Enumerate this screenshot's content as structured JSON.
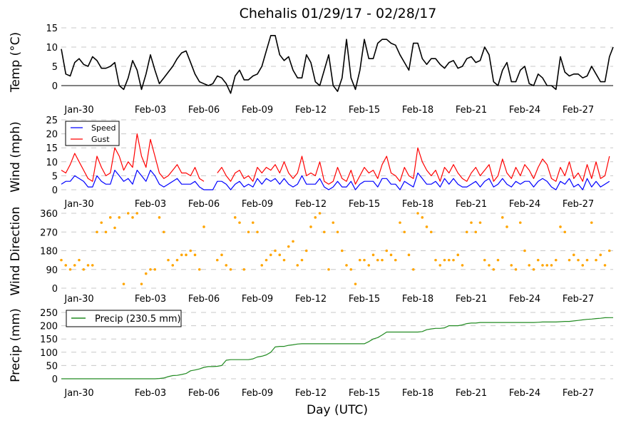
{
  "chart_data": [
    {
      "type": "line",
      "title": "Chehalis 01/29/17 - 02/28/17",
      "xlabel": "Day (UTC)",
      "ylabel": "Temp (°C)",
      "ylim": [
        -2.5,
        15
      ],
      "yticks": [
        "0",
        "5",
        "10",
        "15"
      ],
      "x_unit": "days since Jan-29 00:00, 6-hourly",
      "xtick_labels": [
        "Jan-30",
        "Feb-03",
        "Feb-06",
        "Feb-09",
        "Feb-12",
        "Feb-15",
        "Feb-18",
        "Feb-21",
        "Feb-24",
        "Feb-27"
      ],
      "xtick_days": [
        1,
        5,
        8,
        11,
        14,
        17,
        20,
        23,
        26,
        29
      ],
      "grid": true,
      "series": [
        {
          "name": "Temp",
          "color": "#000000",
          "values": [
            9.5,
            3,
            2.5,
            6,
            7,
            5.5,
            5,
            7.5,
            6.5,
            4.5,
            4.5,
            5,
            6,
            0,
            -1,
            2,
            6.5,
            4,
            -1,
            3,
            8,
            4,
            0.5,
            2,
            3.5,
            5,
            7,
            8.5,
            9,
            6,
            3,
            1,
            0.5,
            0,
            0.5,
            2.5,
            2,
            0.5,
            -2,
            2.5,
            4,
            1.5,
            1.5,
            2.5,
            3,
            5,
            9,
            13,
            13,
            8,
            6.5,
            7.5,
            4,
            2,
            2,
            8,
            6,
            1,
            0,
            4,
            8,
            0,
            -1.5,
            2,
            12,
            2,
            -1,
            4,
            12,
            7,
            7,
            11,
            12,
            12,
            11,
            10.5,
            8,
            6,
            4,
            11,
            11,
            7,
            5.5,
            7,
            7,
            5.5,
            4.5,
            6,
            6.5,
            4.5,
            5,
            7,
            7.5,
            6,
            6.5,
            10,
            8,
            1,
            0,
            4,
            6,
            1,
            1,
            4,
            5,
            0.5,
            0,
            3,
            2,
            0,
            0,
            -1,
            7.5,
            3.5,
            2.5,
            3,
            3,
            2,
            2.5,
            5,
            3,
            1,
            1,
            7.5,
            10
          ]
        }
      ]
    },
    {
      "type": "line",
      "ylabel": "Wind (mph)",
      "ylim": [
        0,
        25
      ],
      "yticks": [
        "0",
        "5",
        "10",
        "15",
        "20",
        "25"
      ],
      "legend": "top-left",
      "grid": true,
      "series": [
        {
          "name": "Speed",
          "color": "#0000ff",
          "values": [
            2,
            3,
            3,
            5,
            4,
            3,
            1,
            1,
            5,
            3,
            2,
            2,
            7,
            5,
            3,
            4,
            2,
            7,
            5,
            3,
            7,
            5,
            2,
            1,
            2,
            3,
            4,
            2,
            2,
            2,
            3,
            1,
            0,
            0,
            0,
            3,
            3,
            2,
            0,
            2,
            3,
            1,
            2,
            1,
            4,
            2,
            4,
            3,
            4,
            2,
            4,
            2,
            1,
            2,
            5,
            2,
            2,
            2,
            4,
            1,
            0,
            1,
            3,
            1,
            1,
            3,
            0,
            2,
            3,
            3,
            3,
            1,
            4,
            4,
            2,
            2,
            0,
            3,
            2,
            1,
            6,
            4,
            2,
            2,
            3,
            1,
            4,
            2,
            4,
            2,
            1,
            1,
            2,
            3,
            1,
            3,
            4,
            1,
            2,
            4,
            2,
            1,
            3,
            2,
            3,
            3,
            1,
            3,
            4,
            3,
            1,
            0,
            3,
            2,
            4,
            1,
            2,
            0,
            4,
            1,
            3,
            1,
            2,
            3
          ]
        },
        {
          "name": "Gust",
          "color": "#ff0000",
          "values": [
            7,
            6,
            9,
            13,
            10,
            7,
            4,
            3,
            12,
            8,
            5,
            6,
            15,
            12,
            7,
            10,
            8,
            20,
            12,
            8,
            18,
            12,
            6,
            4,
            5,
            7,
            9,
            6,
            6,
            5,
            8,
            4,
            3,
            null,
            null,
            6,
            8,
            5,
            3,
            6,
            7,
            4,
            5,
            3,
            8,
            6,
            8,
            7,
            9,
            6,
            10,
            6,
            4,
            6,
            12,
            5,
            6,
            5,
            10,
            3,
            2,
            3,
            8,
            4,
            3,
            7,
            2,
            5,
            8,
            6,
            7,
            4,
            9,
            12,
            6,
            5,
            3,
            8,
            5,
            4,
            15,
            10,
            7,
            5,
            7,
            3,
            8,
            6,
            9,
            6,
            4,
            3,
            6,
            8,
            5,
            7,
            9,
            3,
            5,
            11,
            6,
            4,
            8,
            5,
            9,
            7,
            4,
            8,
            11,
            9,
            4,
            3,
            8,
            5,
            10,
            4,
            6,
            3,
            9,
            4,
            10,
            4,
            5,
            12
          ]
        }
      ]
    },
    {
      "type": "scatter",
      "ylabel": "Wind Direction",
      "ylim": [
        0,
        360
      ],
      "yticks": [
        "0",
        "90",
        "180",
        "270",
        "360"
      ],
      "grid": true,
      "series": [
        {
          "name": "Direction",
          "color": "#ffa500",
          "values": [
            135,
            110,
            90,
            110,
            135,
            90,
            110,
            110,
            270,
            315,
            270,
            340,
            290,
            340,
            20,
            360,
            340,
            360,
            20,
            70,
            90,
            90,
            340,
            270,
            135,
            110,
            135,
            160,
            160,
            180,
            160,
            90,
            295,
            null,
            null,
            135,
            160,
            110,
            90,
            340,
            315,
            90,
            270,
            315,
            270,
            110,
            135,
            160,
            180,
            160,
            135,
            200,
            225,
            110,
            135,
            180,
            295,
            340,
            360,
            270,
            90,
            315,
            270,
            180,
            110,
            90,
            20,
            135,
            135,
            110,
            160,
            135,
            135,
            180,
            160,
            135,
            315,
            270,
            160,
            90,
            360,
            340,
            295,
            270,
            135,
            110,
            135,
            135,
            135,
            160,
            110,
            270,
            315,
            270,
            315,
            135,
            110,
            90,
            135,
            340,
            295,
            110,
            90,
            315,
            180,
            110,
            90,
            135,
            110,
            110,
            110,
            135,
            295,
            270,
            135,
            160,
            135,
            110,
            135,
            315,
            135,
            160,
            110,
            180
          ]
        }
      ]
    },
    {
      "type": "line",
      "ylabel": "Precip (mm)",
      "ylim": [
        0,
        250
      ],
      "yticks": [
        "0",
        "50",
        "100",
        "150",
        "200",
        "250"
      ],
      "legend": "top-left",
      "grid": true,
      "series": [
        {
          "name": "Precip (230.5 mm)",
          "color": "#228b22",
          "values": [
            0,
            0,
            0,
            0,
            0,
            0,
            0,
            0,
            0,
            0,
            0,
            0,
            0,
            0,
            0,
            0,
            0,
            0,
            0,
            0,
            0,
            0,
            1,
            3,
            8,
            12,
            13,
            16,
            20,
            30,
            33,
            37,
            43,
            46,
            46,
            47,
            50,
            70,
            72,
            72,
            72,
            72,
            72,
            75,
            82,
            85,
            90,
            100,
            120,
            122,
            122,
            126,
            128,
            131,
            132,
            132,
            132,
            132,
            132,
            132,
            132,
            132,
            132,
            132,
            132,
            132,
            132,
            132,
            132,
            140,
            150,
            155,
            165,
            176,
            176,
            176,
            176,
            176,
            176,
            176,
            176,
            178,
            185,
            188,
            190,
            190,
            192,
            200,
            200,
            200,
            203,
            208,
            210,
            210,
            212,
            212,
            212,
            212,
            212,
            212,
            212,
            212,
            212,
            212,
            212,
            212,
            212,
            213,
            214,
            214,
            214,
            214,
            215,
            216,
            216,
            218,
            220,
            222,
            224,
            225,
            227,
            228,
            230,
            230.5,
            230.5
          ]
        }
      ]
    }
  ]
}
